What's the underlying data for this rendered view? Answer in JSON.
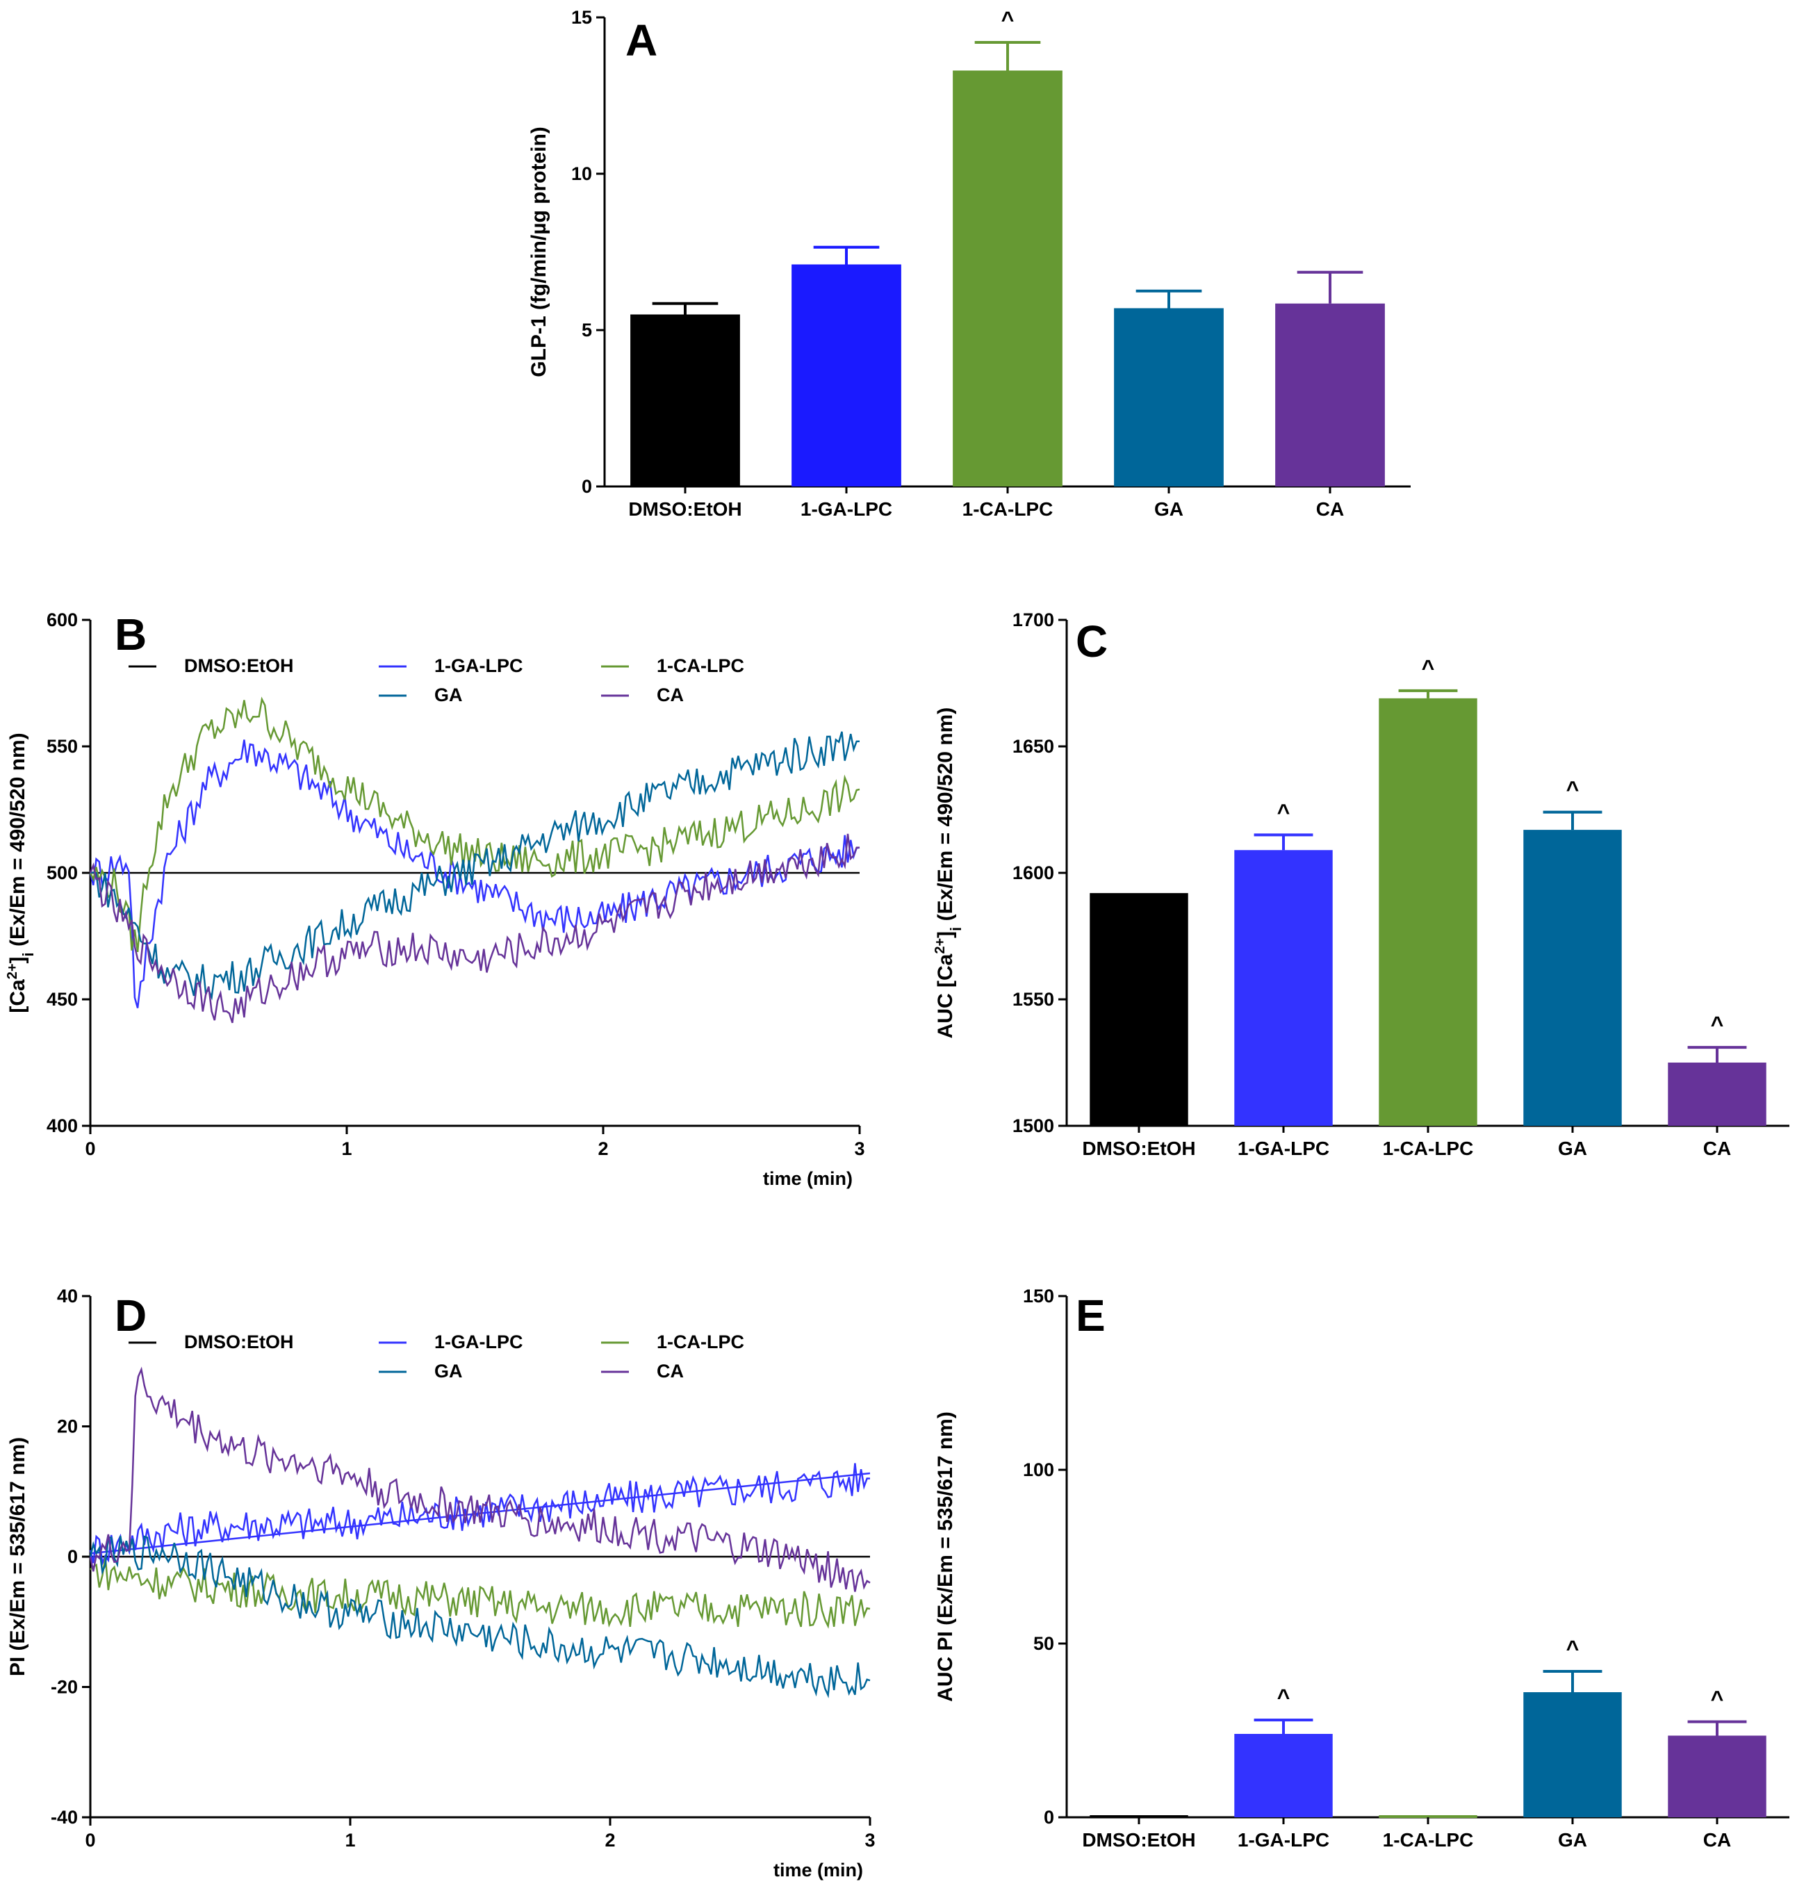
{
  "chart_data": [
    {
      "panel": "A",
      "type": "bar",
      "ylabel": "GLP-1 (fg/min/µg protein)",
      "xlabel": "",
      "ylim": [
        0,
        15
      ],
      "yticks": [
        "0",
        "5",
        "10",
        "15"
      ],
      "categories": [
        "DMSO:EtOH",
        "1-GA-LPC",
        "1-CA-LPC",
        "GA",
        "CA"
      ],
      "values": [
        5.5,
        7.1,
        13.3,
        5.7,
        5.85
      ],
      "errors": [
        0.35,
        0.55,
        0.9,
        0.55,
        1.0
      ],
      "colors": [
        "#000000",
        "#1a1aff",
        "#669933",
        "#006699",
        "#663399"
      ],
      "significance": [
        "",
        "",
        "^",
        "",
        ""
      ]
    },
    {
      "panel": "B",
      "type": "line",
      "ylabel": "[Ca2+]i (Ex/Em = 490/520 nm)",
      "xlabel": "time (min)",
      "xlim": [
        0,
        3
      ],
      "ylim": [
        400,
        600
      ],
      "xticks": [
        "0",
        "1",
        "2",
        "3"
      ],
      "yticks": [
        "400",
        "450",
        "500",
        "550",
        "600"
      ],
      "legend": [
        "DMSO:EtOH",
        "1-GA-LPC",
        "1-CA-LPC",
        "GA",
        "CA"
      ],
      "colors": [
        "#000000",
        "#3333ff",
        "#669933",
        "#006699",
        "#663399"
      ],
      "series": [
        {
          "name": "DMSO:EtOH",
          "x": [
            0,
            3
          ],
          "y": [
            500,
            500
          ]
        },
        {
          "name": "1-GA-LPC",
          "x": [
            0,
            0.15,
            0.18,
            0.22,
            0.3,
            0.45,
            0.62,
            0.8,
            1.0,
            1.2,
            1.4,
            1.6,
            1.8,
            2.0,
            2.2,
            2.5,
            2.8,
            3.0
          ],
          "y": [
            500,
            505,
            440,
            470,
            505,
            535,
            550,
            540,
            525,
            510,
            500,
            490,
            482,
            482,
            490,
            498,
            505,
            510
          ]
        },
        {
          "name": "1-CA-LPC",
          "x": [
            0,
            0.1,
            0.18,
            0.22,
            0.3,
            0.45,
            0.65,
            0.8,
            1.0,
            1.2,
            1.4,
            1.6,
            1.8,
            2.0,
            2.2,
            2.5,
            2.8,
            3.0
          ],
          "y": [
            500,
            495,
            470,
            500,
            530,
            555,
            565,
            550,
            535,
            520,
            510,
            505,
            505,
            507,
            510,
            518,
            525,
            533
          ]
        },
        {
          "name": "GA",
          "x": [
            0,
            0.1,
            0.2,
            0.3,
            0.45,
            0.6,
            0.8,
            1.0,
            1.2,
            1.4,
            1.6,
            1.8,
            2.0,
            2.2,
            2.5,
            2.8,
            3.0
          ],
          "y": [
            500,
            490,
            475,
            460,
            457,
            460,
            470,
            480,
            490,
            498,
            505,
            515,
            522,
            530,
            540,
            548,
            552
          ]
        },
        {
          "name": "CA",
          "x": [
            0,
            0.1,
            0.2,
            0.3,
            0.45,
            0.55,
            0.7,
            0.9,
            1.1,
            1.3,
            1.5,
            1.7,
            1.9,
            2.1,
            2.4,
            2.7,
            3.0
          ],
          "y": [
            500,
            485,
            470,
            460,
            450,
            445,
            455,
            465,
            470,
            470,
            465,
            470,
            475,
            482,
            495,
            503,
            510
          ]
        }
      ]
    },
    {
      "panel": "C",
      "type": "bar",
      "ylabel": "AUC [Ca2+]i (Ex/Em = 490/520 nm)",
      "xlabel": "",
      "ylim": [
        1500,
        1700
      ],
      "yticks": [
        "1500",
        "1550",
        "1600",
        "1650",
        "1700"
      ],
      "categories": [
        "DMSO:EtOH",
        "1-GA-LPC",
        "1-CA-LPC",
        "GA",
        "CA"
      ],
      "values": [
        1592,
        1609,
        1669,
        1617,
        1525
      ],
      "errors": [
        0,
        6,
        3,
        7,
        6
      ],
      "colors": [
        "#000000",
        "#3333ff",
        "#669933",
        "#006699",
        "#663399"
      ],
      "significance": [
        "",
        "^",
        "^",
        "^",
        "^"
      ]
    },
    {
      "panel": "D",
      "type": "line",
      "ylabel": "PI (Ex/Em = 535/617 nm)",
      "xlabel": "time (min)",
      "xlim": [
        0,
        3
      ],
      "ylim": [
        -40,
        40
      ],
      "xticks": [
        "0",
        "1",
        "2",
        "3"
      ],
      "yticks": [
        "-40",
        "-20",
        "0",
        "20",
        "40"
      ],
      "legend": [
        "DMSO:EtOH",
        "1-GA-LPC",
        "1-CA-LPC",
        "GA",
        "CA"
      ],
      "colors": [
        "#000000",
        "#3333ff",
        "#669933",
        "#006699",
        "#663399"
      ],
      "series": [
        {
          "name": "DMSO:EtOH",
          "x": [
            0,
            3
          ],
          "y": [
            0,
            0
          ]
        },
        {
          "name": "1-GA-LPC",
          "x": [
            0,
            0.3,
            0.6,
            0.9,
            1.2,
            1.5,
            1.8,
            2.1,
            2.4,
            2.7,
            3.0
          ],
          "y": [
            1,
            4,
            5,
            5,
            6,
            7,
            8,
            9,
            10,
            11,
            12
          ]
        },
        {
          "name": "1-GA-LPC fit",
          "x": [
            0,
            3
          ],
          "y": [
            0.5,
            12.8
          ]
        },
        {
          "name": "1-CA-LPC",
          "x": [
            0,
            0.3,
            0.6,
            0.9,
            1.2,
            1.5,
            1.8,
            2.1,
            2.4,
            2.7,
            3.0
          ],
          "y": [
            -2,
            -4,
            -5,
            -6,
            -6,
            -7,
            -8,
            -8,
            -8,
            -8,
            -8
          ]
        },
        {
          "name": "GA",
          "x": [
            0,
            0.3,
            0.6,
            0.9,
            1.2,
            1.5,
            1.8,
            2.1,
            2.4,
            2.7,
            3.0
          ],
          "y": [
            0,
            1,
            -4,
            -8,
            -10,
            -12,
            -14,
            -15,
            -16,
            -18,
            -19
          ]
        },
        {
          "name": "CA",
          "x": [
            0,
            0.15,
            0.18,
            0.25,
            0.4,
            0.6,
            0.9,
            1.2,
            1.5,
            1.8,
            2.1,
            2.4,
            2.7,
            3.0
          ],
          "y": [
            0,
            2,
            28,
            24,
            20,
            16,
            14,
            9,
            7,
            5,
            4,
            2,
            0,
            -4
          ]
        }
      ]
    },
    {
      "panel": "E",
      "type": "bar",
      "ylabel": "AUC PI (Ex/Em = 535/617 nm)",
      "xlabel": "",
      "ylim": [
        0,
        150
      ],
      "yticks": [
        "0",
        "50",
        "100",
        "150"
      ],
      "categories": [
        "DMSO:EtOH",
        "1-GA-LPC",
        "1-CA-LPC",
        "GA",
        "CA"
      ],
      "values": [
        0,
        24,
        0,
        36,
        23.5
      ],
      "errors": [
        0,
        4,
        0,
        6,
        4
      ],
      "colors": [
        "#000000",
        "#3333ff",
        "#669933",
        "#006699",
        "#663399"
      ],
      "significance": [
        "",
        "^",
        "",
        "^",
        "^"
      ]
    }
  ]
}
